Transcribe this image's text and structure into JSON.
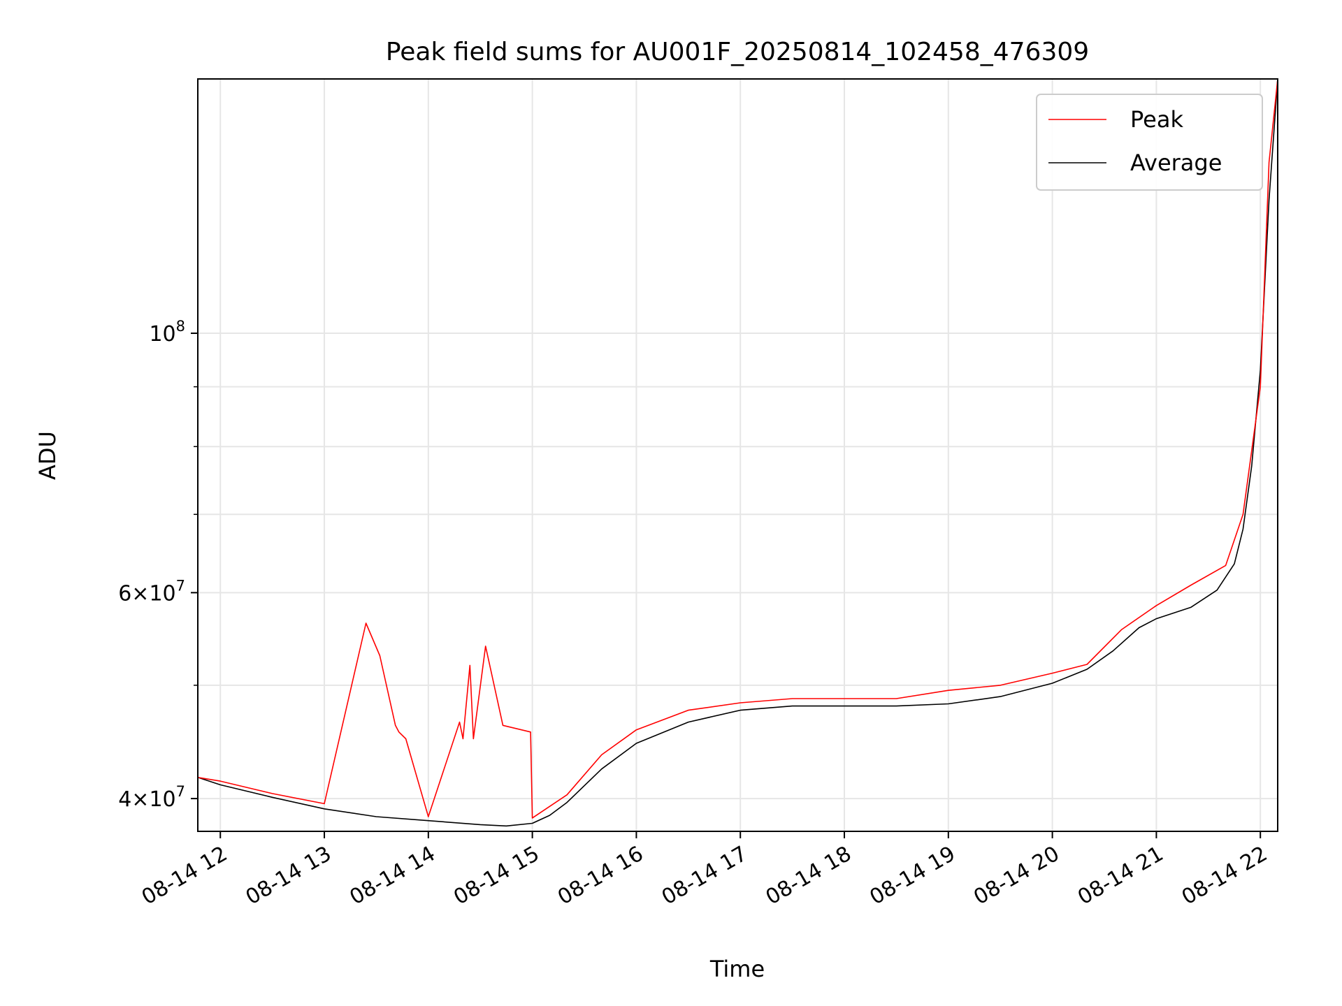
{
  "chart_data": {
    "type": "line",
    "title": "Peak field sums for AU001F_20250814_102458_476309",
    "xlabel": "Time",
    "ylabel": "ADU",
    "yscale": "log",
    "ylim": [
      37500000,
      165000000
    ],
    "xlim": [
      "2025-08-14T11:47",
      "2025-08-14T22:10"
    ],
    "grid": true,
    "legend_position": "upper right",
    "x_ticks": [
      "2025-08-14T12:00",
      "2025-08-14T13:00",
      "2025-08-14T14:00",
      "2025-08-14T15:00",
      "2025-08-14T16:00",
      "2025-08-14T17:00",
      "2025-08-14T18:00",
      "2025-08-14T19:00",
      "2025-08-14T20:00",
      "2025-08-14T21:00",
      "2025-08-14T22:00"
    ],
    "x_tick_labels": [
      "08-14 12",
      "08-14 13",
      "08-14 14",
      "08-14 15",
      "08-14 16",
      "08-14 17",
      "08-14 18",
      "08-14 19",
      "08-14 20",
      "08-14 21",
      "08-14 22"
    ],
    "y_major_ticks": [
      {
        "value": 100000000,
        "mantissa": "",
        "exp": "8"
      },
      {
        "value": 60000000,
        "mantissa": "6×",
        "exp": "7"
      },
      {
        "value": 40000000,
        "mantissa": "4×",
        "exp": "7"
      }
    ],
    "y_minor_grid": [
      50000000,
      70000000,
      80000000,
      90000000
    ],
    "series": [
      {
        "name": "Peak",
        "color": "#ff0000",
        "x": [
          "2025-08-14T11:47",
          "2025-08-14T12:00",
          "2025-08-14T12:30",
          "2025-08-14T13:00",
          "2025-08-14T13:24",
          "2025-08-14T13:32",
          "2025-08-14T13:41",
          "2025-08-14T13:43",
          "2025-08-14T13:47",
          "2025-08-14T14:00",
          "2025-08-14T14:18",
          "2025-08-14T14:20",
          "2025-08-14T14:24",
          "2025-08-14T14:26",
          "2025-08-14T14:33",
          "2025-08-14T14:43",
          "2025-08-14T14:59",
          "2025-08-14T15:00",
          "2025-08-14T15:20",
          "2025-08-14T15:40",
          "2025-08-14T16:00",
          "2025-08-14T16:30",
          "2025-08-14T17:00",
          "2025-08-14T17:30",
          "2025-08-14T18:00",
          "2025-08-14T18:30",
          "2025-08-14T19:00",
          "2025-08-14T19:30",
          "2025-08-14T20:00",
          "2025-08-14T20:20",
          "2025-08-14T20:40",
          "2025-08-14T21:00",
          "2025-08-14T21:20",
          "2025-08-14T21:40",
          "2025-08-14T21:50",
          "2025-08-14T22:00",
          "2025-08-14T22:05",
          "2025-08-14T22:10"
        ],
        "values": [
          41700000,
          41400000,
          40400000,
          39600000,
          56500000,
          53000000,
          46200000,
          45600000,
          45000000,
          38600000,
          46500000,
          45000000,
          52000000,
          45000000,
          54000000,
          46200000,
          45600000,
          38500000,
          40300000,
          43600000,
          45800000,
          47600000,
          48300000,
          48700000,
          48700000,
          48700000,
          49500000,
          50000000,
          51200000,
          52100000,
          55800000,
          58500000,
          60900000,
          63300000,
          70000000,
          90000000,
          140000000,
          165000000
        ]
      },
      {
        "name": "Average",
        "color": "#000000",
        "x": [
          "2025-08-14T11:47",
          "2025-08-14T12:00",
          "2025-08-14T12:30",
          "2025-08-14T13:00",
          "2025-08-14T13:30",
          "2025-08-14T14:00",
          "2025-08-14T14:30",
          "2025-08-14T14:45",
          "2025-08-14T15:00",
          "2025-08-14T15:10",
          "2025-08-14T15:20",
          "2025-08-14T15:40",
          "2025-08-14T16:00",
          "2025-08-14T16:30",
          "2025-08-14T17:00",
          "2025-08-14T17:30",
          "2025-08-14T18:00",
          "2025-08-14T18:30",
          "2025-08-14T19:00",
          "2025-08-14T19:30",
          "2025-08-14T20:00",
          "2025-08-14T20:20",
          "2025-08-14T20:35",
          "2025-08-14T20:50",
          "2025-08-14T21:00",
          "2025-08-14T21:20",
          "2025-08-14T21:35",
          "2025-08-14T21:45",
          "2025-08-14T21:50",
          "2025-08-14T21:55",
          "2025-08-14T22:00",
          "2025-08-14T22:05",
          "2025-08-14T22:10"
        ],
        "values": [
          41700000,
          41100000,
          40100000,
          39200000,
          38600000,
          38300000,
          38000000,
          37900000,
          38100000,
          38700000,
          39700000,
          42400000,
          44600000,
          46500000,
          47600000,
          48000000,
          48000000,
          48000000,
          48200000,
          48900000,
          50200000,
          51600000,
          53500000,
          56000000,
          57000000,
          58300000,
          60300000,
          63500000,
          68000000,
          77000000,
          93000000,
          130000000,
          165000000
        ]
      }
    ]
  }
}
